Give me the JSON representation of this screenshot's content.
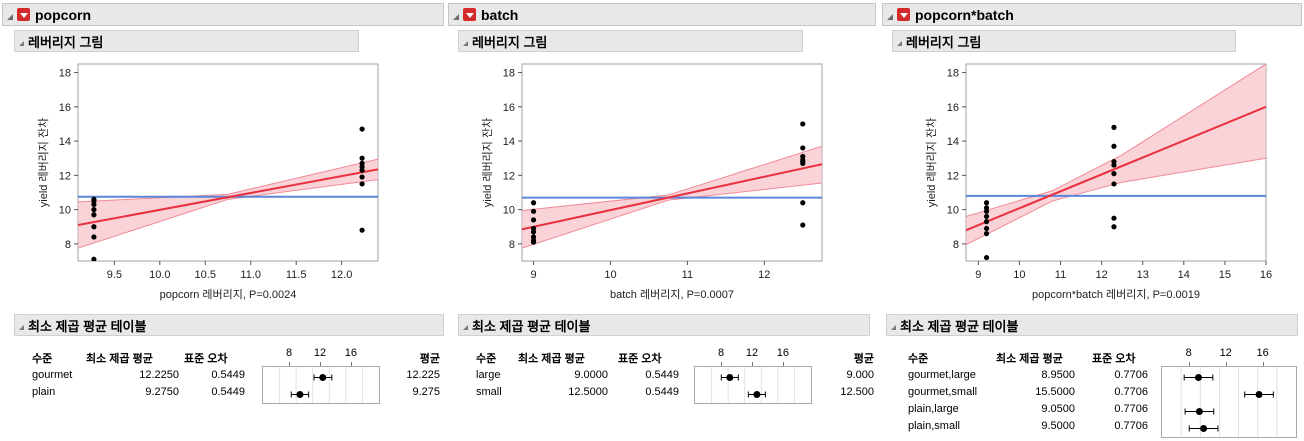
{
  "colors": {
    "fit": "#e8303f",
    "band_fill": "#f7c4cb",
    "band_edge": "#f08a98",
    "mean_line": "#5b86d8",
    "point": "#000000"
  },
  "panels": [
    {
      "title": "popcorn",
      "leverage_title": "레버리지 그림",
      "ylabel": "yield 레버리지 잔차",
      "xlabel": "popcorn  레버리지, P=0.0024",
      "chart_data": {
        "type": "scatter",
        "xlim": [
          9.1,
          12.4
        ],
        "ylim": [
          7,
          18.5
        ],
        "xticks": [
          "9.5",
          "10.0",
          "10.5",
          "11.0",
          "11.5",
          "12.0"
        ],
        "xtick_vals": [
          9.5,
          10.0,
          10.5,
          11.0,
          11.5,
          12.0
        ],
        "yticks": [
          "8",
          "10",
          "12",
          "14",
          "16",
          "18"
        ],
        "ytick_vals": [
          8,
          10,
          12,
          14,
          16,
          18
        ],
        "x": [
          9.275,
          9.275,
          9.275,
          9.275,
          9.275,
          9.275,
          9.275,
          9.275,
          12.225,
          12.225,
          12.225,
          12.225,
          12.225,
          12.225,
          12.225,
          12.225
        ],
        "y": [
          10.6,
          10.3,
          10.0,
          9.7,
          9.0,
          8.4,
          7.1,
          10.5,
          14.7,
          13.0,
          12.7,
          12.5,
          12.3,
          11.9,
          11.5,
          8.8
        ],
        "mean": 10.75,
        "fit": [
          [
            9.1,
            9.1
          ],
          [
            12.4,
            12.35
          ]
        ],
        "band_upper": [
          [
            9.1,
            10.45
          ],
          [
            10.75,
            10.9
          ],
          [
            12.4,
            12.95
          ]
        ],
        "band_lower": [
          [
            9.1,
            7.75
          ],
          [
            10.75,
            10.6
          ],
          [
            12.4,
            11.75
          ]
        ],
        "grid": false
      },
      "table_title": "최소 제곱 평균 테이블",
      "table_headers": {
        "level": "수준",
        "lsm": "최소 제곱 평균",
        "se": "표준 오차",
        "mean": "평균"
      },
      "ci_ticks": [
        "8",
        "12",
        "16"
      ],
      "ci_tick_vals": [
        8,
        12,
        16
      ],
      "ci_range": [
        4.5,
        19.5
      ],
      "rows": [
        {
          "level": "gourmet",
          "lsm": "12.2250",
          "se": "0.5449",
          "mean": "12.225",
          "lsm_val": 12.225,
          "lo": 11.1,
          "hi": 13.4
        },
        {
          "level": "plain",
          "lsm": "9.2750",
          "se": "0.5449",
          "mean": "9.275",
          "lsm_val": 9.275,
          "lo": 8.15,
          "hi": 10.4
        }
      ]
    },
    {
      "title": "batch",
      "leverage_title": "레버리지 그림",
      "ylabel": "yield 레버리지 잔차",
      "xlabel": "batch  레버리지, P=0.0007",
      "chart_data": {
        "type": "scatter",
        "xlim": [
          8.85,
          12.75
        ],
        "ylim": [
          7,
          18.5
        ],
        "xticks": [
          "9",
          "10",
          "11",
          "12"
        ],
        "xtick_vals": [
          9,
          10,
          11,
          12
        ],
        "yticks": [
          "8",
          "10",
          "12",
          "14",
          "16",
          "18"
        ],
        "ytick_vals": [
          8,
          10,
          12,
          14,
          16,
          18
        ],
        "x": [
          9,
          9,
          9,
          9,
          9,
          9,
          9,
          9,
          12.5,
          12.5,
          12.5,
          12.5,
          12.5,
          12.5,
          12.5,
          12.5
        ],
        "y": [
          10.4,
          9.9,
          9.4,
          8.9,
          8.7,
          8.4,
          8.2,
          8.1,
          15.0,
          13.6,
          13.1,
          12.9,
          12.8,
          12.7,
          10.4,
          9.1
        ],
        "mean": 10.7,
        "fit": [
          [
            8.85,
            8.85
          ],
          [
            12.75,
            12.65
          ]
        ],
        "band_upper": [
          [
            8.85,
            9.95
          ],
          [
            10.75,
            10.85
          ],
          [
            12.75,
            13.7
          ]
        ],
        "band_lower": [
          [
            8.85,
            7.75
          ],
          [
            10.75,
            10.55
          ],
          [
            12.75,
            11.55
          ]
        ],
        "grid": false
      },
      "table_title": "최소 제곱 평균 테이블",
      "table_headers": {
        "level": "수준",
        "lsm": "최소 제곱 평균",
        "se": "표준 오차",
        "mean": "평균"
      },
      "ci_ticks": [
        "8",
        "12",
        "16"
      ],
      "ci_tick_vals": [
        8,
        12,
        16
      ],
      "ci_range": [
        4.5,
        19.5
      ],
      "rows": [
        {
          "level": "large",
          "lsm": "9.0000",
          "se": "0.5449",
          "mean": "9.000",
          "lsm_val": 9.0,
          "lo": 7.9,
          "hi": 10.1
        },
        {
          "level": "small",
          "lsm": "12.5000",
          "se": "0.5449",
          "mean": "12.500",
          "lsm_val": 12.5,
          "lo": 11.4,
          "hi": 13.6
        }
      ]
    },
    {
      "title": "popcorn*batch",
      "leverage_title": "레버리지 그림",
      "ylabel": "yield 레버리지 잔차",
      "xlabel": "popcorn*batch  레버리지, P=0.0019",
      "chart_data": {
        "type": "scatter",
        "xlim": [
          8.7,
          16.0
        ],
        "ylim": [
          7,
          18.5
        ],
        "xticks": [
          "9",
          "10",
          "11",
          "12",
          "13",
          "14",
          "15",
          "16"
        ],
        "xtick_vals": [
          9,
          10,
          11,
          12,
          13,
          14,
          15,
          16
        ],
        "yticks": [
          "8",
          "10",
          "12",
          "14",
          "16",
          "18"
        ],
        "ytick_vals": [
          8,
          10,
          12,
          14,
          16,
          18
        ],
        "x": [
          9.2,
          9.2,
          9.2,
          9.2,
          9.2,
          9.2,
          9.2,
          9.2,
          12.3,
          12.3,
          12.3,
          12.3,
          12.3,
          12.3,
          12.3,
          12.3
        ],
        "y": [
          10.4,
          10.1,
          9.9,
          9.6,
          9.3,
          8.9,
          8.6,
          7.2,
          14.8,
          13.7,
          12.8,
          12.6,
          12.1,
          11.5,
          9.0,
          9.5
        ],
        "mean": 10.8,
        "fit": [
          [
            8.7,
            8.8
          ],
          [
            16.0,
            16.0
          ]
        ],
        "band_upper": [
          [
            8.7,
            9.6
          ],
          [
            10.8,
            11.1
          ],
          [
            12.5,
            13.2
          ],
          [
            16.0,
            18.5
          ]
        ],
        "band_lower": [
          [
            8.7,
            7.95
          ],
          [
            10.8,
            10.5
          ],
          [
            12.5,
            11.6
          ],
          [
            16.0,
            13.0
          ]
        ],
        "grid": false
      },
      "table_title": "최소 제곱 평균 테이블",
      "table_headers": {
        "level": "수준",
        "lsm": "최소 제곱 평균",
        "se": "표준 오차"
      },
      "ci_ticks": [
        "8",
        "12",
        "16"
      ],
      "ci_tick_vals": [
        8,
        12,
        16
      ],
      "ci_range": [
        5,
        19.5
      ],
      "rows": [
        {
          "level": "gourmet,large",
          "lsm": "8.9500",
          "se": "0.7706",
          "lsm_val": 8.95,
          "lo": 7.4,
          "hi": 10.5
        },
        {
          "level": "gourmet,small",
          "lsm": "15.5000",
          "se": "0.7706",
          "lsm_val": 15.5,
          "lo": 13.95,
          "hi": 17.05
        },
        {
          "level": "plain,large",
          "lsm": "9.0500",
          "se": "0.7706",
          "lsm_val": 9.05,
          "lo": 7.5,
          "hi": 10.6
        },
        {
          "level": "plain,small",
          "lsm": "9.5000",
          "se": "0.7706",
          "lsm_val": 9.5,
          "lo": 7.95,
          "hi": 11.05
        }
      ]
    }
  ]
}
